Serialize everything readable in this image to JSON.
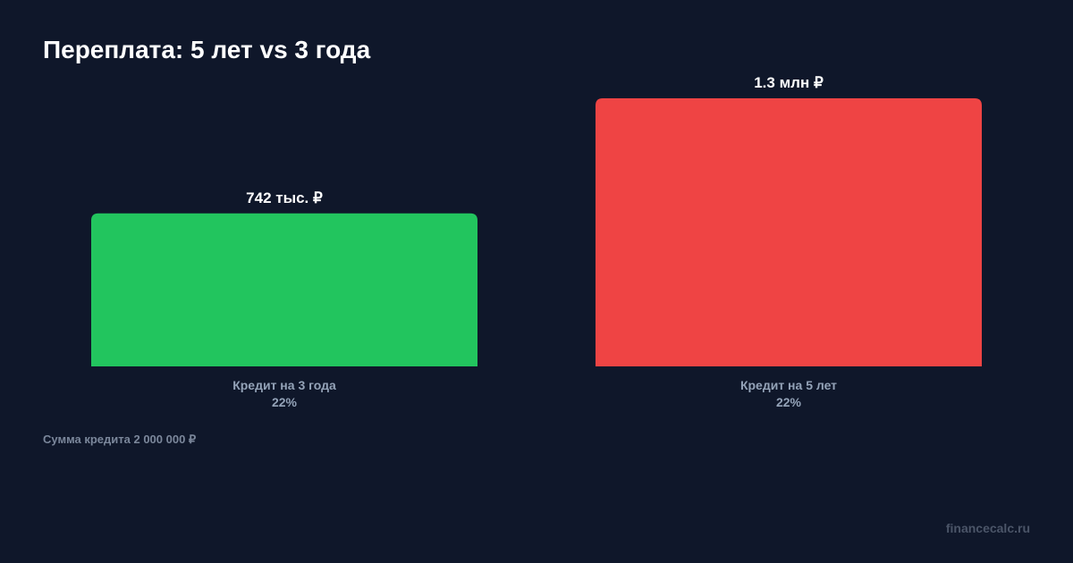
{
  "chart_data": {
    "type": "bar",
    "title": "Переплата: 5 лет vs 3 года",
    "categories": [
      "Кредит на 3 года",
      "Кредит на 5 лет"
    ],
    "sublabels": [
      "22%",
      "22%"
    ],
    "values": [
      742000,
      1300000
    ],
    "data_labels": [
      "742 тыс. ₽",
      "1.3 млн ₽"
    ],
    "colors": [
      "#22c55e",
      "#ef4444"
    ],
    "ylim": [
      0,
      1300000
    ],
    "grid": false
  },
  "footnote": "Сумма кредита 2 000 000 ₽",
  "brand": "financecalc.ru"
}
